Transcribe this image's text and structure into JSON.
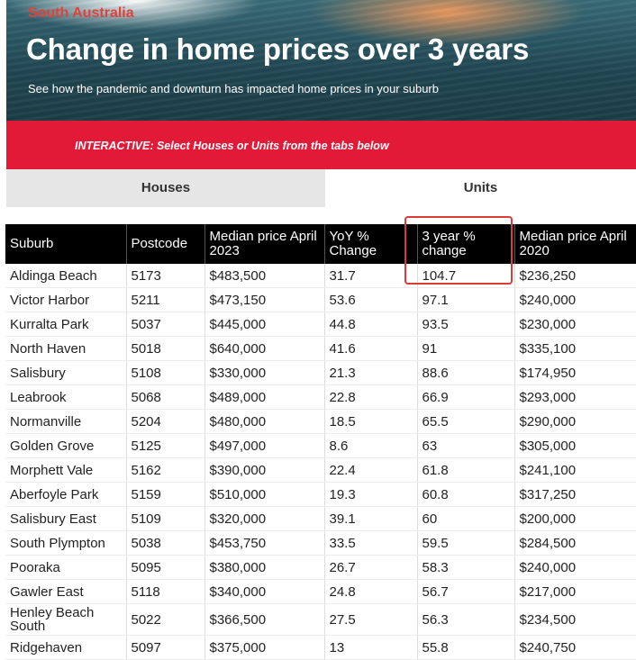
{
  "header": {
    "region": "South Australia",
    "title": "Change in home prices over 3 years",
    "subtitle": "See how the pandemic and downturn has impacted home prices in your suburb"
  },
  "banner": {
    "text": "INTERACTIVE: Select Houses or Units from the tabs below"
  },
  "tabs": [
    {
      "label": "Houses",
      "selected": false
    },
    {
      "label": "Units",
      "selected": true
    }
  ],
  "table": {
    "columns": [
      "Suburb",
      "Postcode",
      "Median price April 2023",
      "YoY % Change",
      "3 year % change",
      "Median price April 2020"
    ],
    "rows": [
      [
        "Aldinga Beach",
        "5173",
        "$483,500",
        "31.7",
        "104.7",
        "$236,250"
      ],
      [
        "Victor Harbor",
        "5211",
        "$473,150",
        "53.6",
        "97.1",
        "$240,000"
      ],
      [
        "Kurralta Park",
        "5037",
        "$445,000",
        "44.8",
        "93.5",
        "$230,000"
      ],
      [
        "North Haven",
        "5018",
        "$640,000",
        "41.6",
        "91",
        "$335,100"
      ],
      [
        "Salisbury",
        "5108",
        "$330,000",
        "21.3",
        "88.6",
        "$174,950"
      ],
      [
        "Leabrook",
        "5068",
        "$489,000",
        "22.8",
        "66.9",
        "$293,000"
      ],
      [
        "Normanville",
        "5204",
        "$480,000",
        "18.5",
        "65.5",
        "$290,000"
      ],
      [
        "Golden Grove",
        "5125",
        "$497,000",
        "8.6",
        "63",
        "$305,000"
      ],
      [
        "Morphett Vale",
        "5162",
        "$390,000",
        "22.4",
        "61.8",
        "$241,100"
      ],
      [
        "Aberfoyle Park",
        "5159",
        "$510,000",
        "19.3",
        "60.8",
        "$317,250"
      ],
      [
        "Salisbury East",
        "5109",
        "$320,000",
        "39.1",
        "60",
        "$200,000"
      ],
      [
        "South Plympton",
        "5038",
        "$453,750",
        "33.5",
        "59.5",
        "$284,500"
      ],
      [
        "Pooraka",
        "5095",
        "$380,000",
        "26.7",
        "58.3",
        "$240,000"
      ],
      [
        "Gawler East",
        "5118",
        "$340,000",
        "24.8",
        "56.7",
        "$217,000"
      ],
      [
        "Henley Beach South",
        "5022",
        "$366,500",
        "27.5",
        "56.3",
        "$234,500"
      ],
      [
        "Ridgehaven",
        "5097",
        "$375,000",
        "13",
        "55.8",
        "$240,750"
      ]
    ]
  },
  "colors": {
    "accent_red": "#e21937",
    "header_black": "#000000",
    "highlight_outline": "#d93b35"
  }
}
